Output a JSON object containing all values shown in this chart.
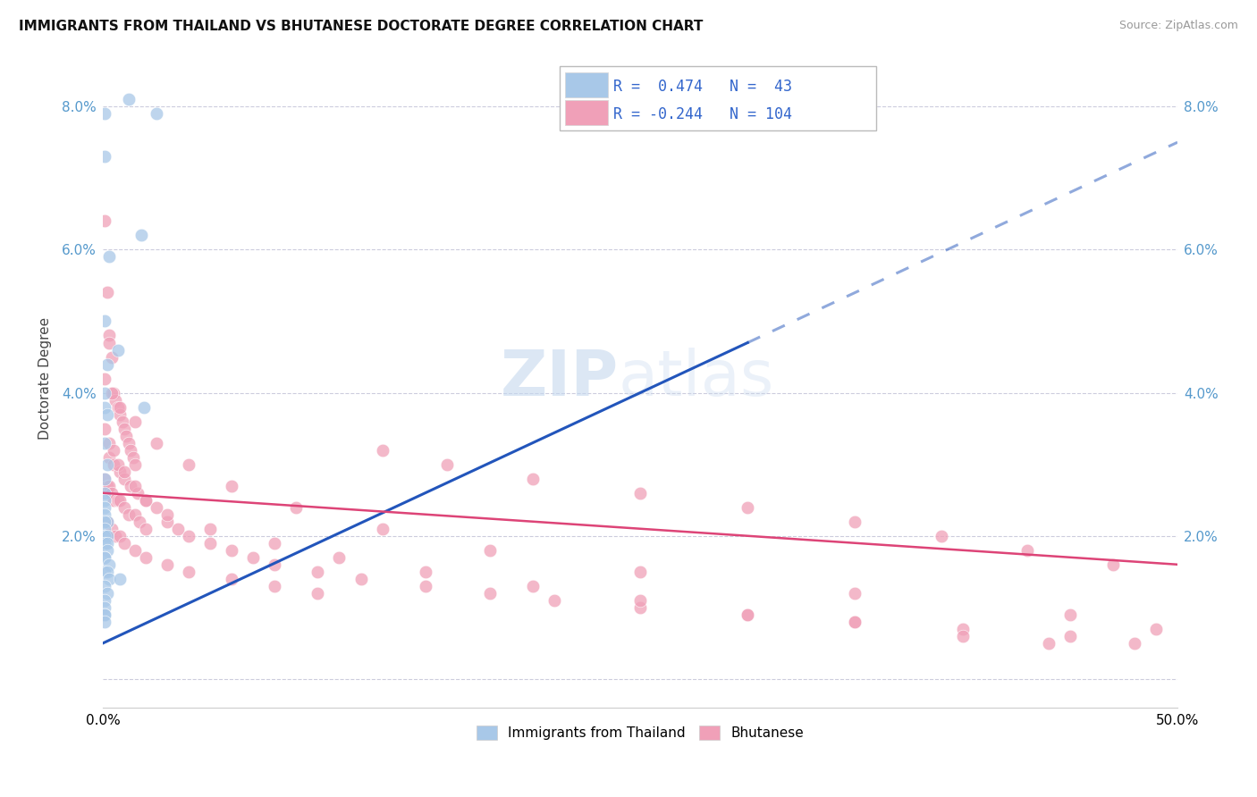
{
  "title": "IMMIGRANTS FROM THAILAND VS BHUTANESE DOCTORATE DEGREE CORRELATION CHART",
  "source": "Source: ZipAtlas.com",
  "ylabel": "Doctorate Degree",
  "xlim": [
    0.0,
    0.5
  ],
  "ylim": [
    -0.004,
    0.088
  ],
  "yticks": [
    0.0,
    0.02,
    0.04,
    0.06,
    0.08
  ],
  "ytick_labels": [
    "",
    "2.0%",
    "4.0%",
    "6.0%",
    "8.0%"
  ],
  "blue_color": "#A8C8E8",
  "pink_color": "#F0A0B8",
  "blue_line_color": "#2255BB",
  "pink_line_color": "#DD4477",
  "watermark_zip": "ZIP",
  "watermark_atlas": "atlas",
  "blue_line_x": [
    0.0,
    0.5
  ],
  "blue_line_y": [
    0.005,
    0.075
  ],
  "pink_line_x": [
    0.0,
    0.5
  ],
  "pink_line_y": [
    0.026,
    0.016
  ],
  "thailand_x": [
    0.012,
    0.001,
    0.025,
    0.001,
    0.018,
    0.003,
    0.001,
    0.007,
    0.002,
    0.001,
    0.001,
    0.002,
    0.001,
    0.002,
    0.001,
    0.001,
    0.001,
    0.001,
    0.001,
    0.002,
    0.001,
    0.001,
    0.001,
    0.001,
    0.002,
    0.001,
    0.002,
    0.002,
    0.001,
    0.001,
    0.003,
    0.001,
    0.002,
    0.003,
    0.008,
    0.001,
    0.002,
    0.001,
    0.001,
    0.001,
    0.001,
    0.001,
    0.019
  ],
  "thailand_y": [
    0.081,
    0.079,
    0.079,
    0.073,
    0.062,
    0.059,
    0.05,
    0.046,
    0.044,
    0.04,
    0.038,
    0.037,
    0.033,
    0.03,
    0.028,
    0.026,
    0.025,
    0.024,
    0.023,
    0.022,
    0.022,
    0.021,
    0.02,
    0.02,
    0.02,
    0.019,
    0.019,
    0.018,
    0.017,
    0.017,
    0.016,
    0.015,
    0.015,
    0.014,
    0.014,
    0.013,
    0.012,
    0.011,
    0.01,
    0.009,
    0.009,
    0.008,
    0.038
  ],
  "bhutan_x": [
    0.001,
    0.002,
    0.003,
    0.003,
    0.004,
    0.005,
    0.006,
    0.007,
    0.008,
    0.009,
    0.01,
    0.011,
    0.012,
    0.013,
    0.014,
    0.015,
    0.001,
    0.002,
    0.003,
    0.004,
    0.005,
    0.007,
    0.008,
    0.01,
    0.012,
    0.015,
    0.017,
    0.02,
    0.003,
    0.005,
    0.008,
    0.01,
    0.013,
    0.016,
    0.02,
    0.025,
    0.03,
    0.035,
    0.04,
    0.05,
    0.06,
    0.07,
    0.08,
    0.1,
    0.12,
    0.15,
    0.18,
    0.21,
    0.25,
    0.3,
    0.35,
    0.4,
    0.45,
    0.48,
    0.002,
    0.004,
    0.006,
    0.008,
    0.01,
    0.015,
    0.02,
    0.03,
    0.04,
    0.06,
    0.08,
    0.1,
    0.13,
    0.16,
    0.2,
    0.25,
    0.3,
    0.35,
    0.39,
    0.43,
    0.47,
    0.001,
    0.003,
    0.005,
    0.007,
    0.01,
    0.015,
    0.02,
    0.03,
    0.05,
    0.08,
    0.11,
    0.15,
    0.2,
    0.25,
    0.3,
    0.35,
    0.4,
    0.44,
    0.001,
    0.004,
    0.008,
    0.015,
    0.025,
    0.04,
    0.06,
    0.09,
    0.13,
    0.18,
    0.25,
    0.35,
    0.45,
    0.49
  ],
  "bhutan_y": [
    0.064,
    0.054,
    0.048,
    0.047,
    0.045,
    0.04,
    0.039,
    0.038,
    0.037,
    0.036,
    0.035,
    0.034,
    0.033,
    0.032,
    0.031,
    0.03,
    0.028,
    0.027,
    0.027,
    0.026,
    0.025,
    0.025,
    0.025,
    0.024,
    0.023,
    0.023,
    0.022,
    0.021,
    0.031,
    0.03,
    0.029,
    0.028,
    0.027,
    0.026,
    0.025,
    0.024,
    0.022,
    0.021,
    0.02,
    0.019,
    0.018,
    0.017,
    0.016,
    0.015,
    0.014,
    0.013,
    0.012,
    0.011,
    0.01,
    0.009,
    0.008,
    0.007,
    0.006,
    0.005,
    0.022,
    0.021,
    0.02,
    0.02,
    0.019,
    0.018,
    0.017,
    0.016,
    0.015,
    0.014,
    0.013,
    0.012,
    0.032,
    0.03,
    0.028,
    0.026,
    0.024,
    0.022,
    0.02,
    0.018,
    0.016,
    0.035,
    0.033,
    0.032,
    0.03,
    0.029,
    0.027,
    0.025,
    0.023,
    0.021,
    0.019,
    0.017,
    0.015,
    0.013,
    0.011,
    0.009,
    0.008,
    0.006,
    0.005,
    0.042,
    0.04,
    0.038,
    0.036,
    0.033,
    0.03,
    0.027,
    0.024,
    0.021,
    0.018,
    0.015,
    0.012,
    0.009,
    0.007
  ]
}
